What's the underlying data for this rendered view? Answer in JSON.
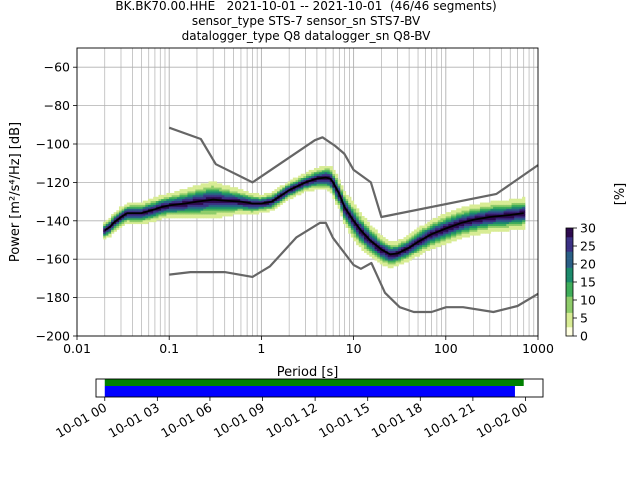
{
  "chart_data": {
    "type": "heatmap",
    "title_lines": [
      "BK.BK70.00.HHE   2021-10-01 -- 2021-10-01  (46/46 segments)",
      "sensor_type STS-7 sensor_sn STS7-BV",
      "datalogger_type Q8 datalogger_sn Q8-BV"
    ],
    "xlabel": "Period [s]",
    "ylabel": "Power [m²/s⁴/Hz] [dB]",
    "x_scale": "log",
    "xlim": [
      0.01,
      1000
    ],
    "ylim": [
      -200,
      -50
    ],
    "grid": true,
    "x_ticks": [
      {
        "v": 0.01,
        "label": "0.01"
      },
      {
        "v": 0.1,
        "label": "0.1"
      },
      {
        "v": 1,
        "label": "1"
      },
      {
        "v": 10,
        "label": "10"
      },
      {
        "v": 100,
        "label": "100"
      },
      {
        "v": 1000,
        "label": "1000"
      }
    ],
    "y_ticks": [
      {
        "v": -60,
        "label": "−60"
      },
      {
        "v": -80,
        "label": "−80"
      },
      {
        "v": -100,
        "label": "−100"
      },
      {
        "v": -120,
        "label": "−120"
      },
      {
        "v": -140,
        "label": "−140"
      },
      {
        "v": -160,
        "label": "−160"
      },
      {
        "v": -180,
        "label": "−180"
      },
      {
        "v": -200,
        "label": "−200"
      }
    ],
    "nhnm": [
      [
        0.1,
        -91.5
      ],
      [
        0.22,
        -97.4
      ],
      [
        0.32,
        -110.5
      ],
      [
        0.8,
        -120
      ],
      [
        3.8,
        -98
      ],
      [
        4.6,
        -96.5
      ],
      [
        6.3,
        -101
      ],
      [
        7.9,
        -105
      ],
      [
        10,
        -113.5
      ],
      [
        15.4,
        -120
      ],
      [
        20,
        -138
      ],
      [
        354.8,
        -126
      ],
      [
        1000,
        -111
      ]
    ],
    "nlnm": [
      [
        0.1,
        -168
      ],
      [
        0.17,
        -166.7
      ],
      [
        0.4,
        -166.7
      ],
      [
        0.8,
        -169.2
      ],
      [
        1.24,
        -163.7
      ],
      [
        2.4,
        -148.6
      ],
      [
        4.3,
        -141.1
      ],
      [
        5,
        -141.1
      ],
      [
        6,
        -149
      ],
      [
        10,
        -163
      ],
      [
        12,
        -165
      ],
      [
        15.6,
        -162
      ],
      [
        21.9,
        -177.5
      ],
      [
        31.6,
        -185
      ],
      [
        45,
        -187.5
      ],
      [
        70,
        -187.5
      ],
      [
        101,
        -185
      ],
      [
        154,
        -185
      ],
      [
        328,
        -187.5
      ],
      [
        600,
        -184.4
      ],
      [
        1000,
        -178
      ]
    ],
    "mean_curve": [
      [
        0.02,
        -145
      ],
      [
        0.023,
        -143
      ],
      [
        0.025,
        -141
      ],
      [
        0.03,
        -138
      ],
      [
        0.035,
        -136
      ],
      [
        0.05,
        -136
      ],
      [
        0.07,
        -134
      ],
      [
        0.08,
        -133
      ],
      [
        0.1,
        -132
      ],
      [
        0.15,
        -131
      ],
      [
        0.2,
        -130
      ],
      [
        0.3,
        -129
      ],
      [
        0.4,
        -129.5
      ],
      [
        0.6,
        -130
      ],
      [
        0.8,
        -131
      ],
      [
        1,
        -131
      ],
      [
        1.3,
        -130
      ],
      [
        2,
        -124
      ],
      [
        3,
        -120
      ],
      [
        4,
        -118
      ],
      [
        5,
        -117.5
      ],
      [
        5.6,
        -118
      ],
      [
        6,
        -120
      ],
      [
        7,
        -126
      ],
      [
        8,
        -133
      ],
      [
        10,
        -140
      ],
      [
        12,
        -145
      ],
      [
        15,
        -150
      ],
      [
        20,
        -155
      ],
      [
        25,
        -157.5
      ],
      [
        30,
        -157
      ],
      [
        40,
        -154
      ],
      [
        50,
        -151
      ],
      [
        70,
        -147
      ],
      [
        100,
        -144
      ],
      [
        150,
        -141
      ],
      [
        200,
        -139.5
      ],
      [
        300,
        -138
      ],
      [
        500,
        -137
      ],
      [
        700,
        -136
      ]
    ],
    "density_band_halfwidth_db": [
      [
        0.02,
        3
      ],
      [
        0.1,
        4
      ],
      [
        0.3,
        6
      ],
      [
        0.6,
        4
      ],
      [
        1,
        3
      ],
      [
        3,
        3
      ],
      [
        5,
        4
      ],
      [
        10,
        6
      ],
      [
        30,
        4
      ],
      [
        100,
        5
      ],
      [
        300,
        5
      ],
      [
        700,
        5
      ]
    ],
    "colorbar": {
      "label": "[%]",
      "ticks": [
        0,
        5,
        10,
        15,
        20,
        25,
        30
      ],
      "range": [
        0,
        30
      ],
      "colors": [
        "#ffffe0",
        "#d8ec95",
        "#8fcc6a",
        "#3fad5a",
        "#1c8a6c",
        "#2a5f86",
        "#3b3184",
        "#2d0a4e"
      ]
    },
    "coverage": {
      "x_ticks": [
        "10-01 00",
        "10-01 03",
        "10-01 06",
        "10-01 09",
        "10-01 12",
        "10-01 15",
        "10-01 18",
        "10-01 21",
        "10-02 00"
      ],
      "x_range_hours": [
        -0.5,
        25
      ],
      "green_bar_hours": [
        0,
        23.9
      ],
      "blue_bar_hours": [
        0,
        23.4
      ],
      "colors": {
        "green": "#008000",
        "blue": "#0000ff"
      }
    }
  }
}
